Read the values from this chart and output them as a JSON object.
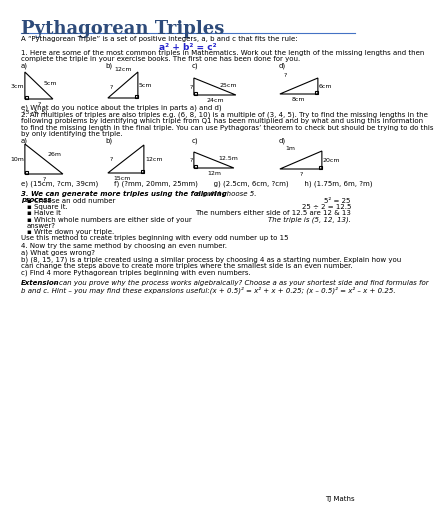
{
  "title": "Pythagorean Triples",
  "title_color": "#2E4B7A",
  "bg_color": "#FFFFFF",
  "rule_text": "A “Pythagorean Triple” is a set of positive integers, a, b and c that fits the rule:",
  "formula": "a² + b² = c²",
  "q1_text1": "1. Here are some of the most common triples in Mathematics. Work out the length of the missing lengths and then",
  "q1_text2": "complete the triple in your exercise books. The first one has been done for you.",
  "q1e_text": "e) What do you notice about the triples in parts a) and d)",
  "q2_text1": "2. All multiples of triples are also triples e.g. (6, 8, 10) is a multiple of (3, 4, 5). Try to find the missing lengths in the",
  "q2_text2": "following problems by identifying which triple from Q1 has been multiplied and by what and using this information",
  "q2_text3": "to find the missing length in the final triple. You can use Pythagoras’ theorem to check but should be trying to do this",
  "q2_text4": "by only identifying the triple.",
  "q2e_text": "e) (15cm, ?cm, 39cm)       f) (?mm, 20mm, 25mm)       g) (2.5cm, 6cm, ?cm)       h) (1.75m, 6m, ?m)",
  "q3_text1": "3. We can generate more triples using the following",
  "q3_text2": "process",
  "q3_example": "e.g. If I choose 5.",
  "q3_bullets": [
    "Choose an odd number",
    "Square it.",
    "Halve it",
    "Which whole numbers are either side of your",
    "answer?",
    "Write down your triple."
  ],
  "q3_example_lines": [
    "5² = 25",
    "25 ÷ 2 = 12.5",
    "The numbers either side of 12.5 are 12 & 13",
    "The triple is (5, 12, 13)."
  ],
  "q3_use_text": "Use this method to create triples beginning with every odd number up to 15",
  "q4_text": "4. Now try the same method by choosing an even number.",
  "q4a_text": "a) What goes wrong?",
  "q4b_text1": "b) (8, 15, 17) is a triple created using a similar process by choosing 4 as a starting number. Explain how you",
  "q4b_text2": "can change the steps above to create more triples where the smallest side is an even number.",
  "q4c_text": "c) Find 4 more Pythagorean triples beginning with even numbers.",
  "ext_label": "Extension",
  "ext_text1": " – can you prove why the process works algebraically? Choose a as your shortest side and find formulas for",
  "ext_text2": "b and c. Hint – you may find these expansions useful:(x + 0.5)² = x² + x + 0.25; (x – 0.5)² = x² – x + 0.25.",
  "footer": "TJ Maths",
  "line_color": "#4472C4"
}
